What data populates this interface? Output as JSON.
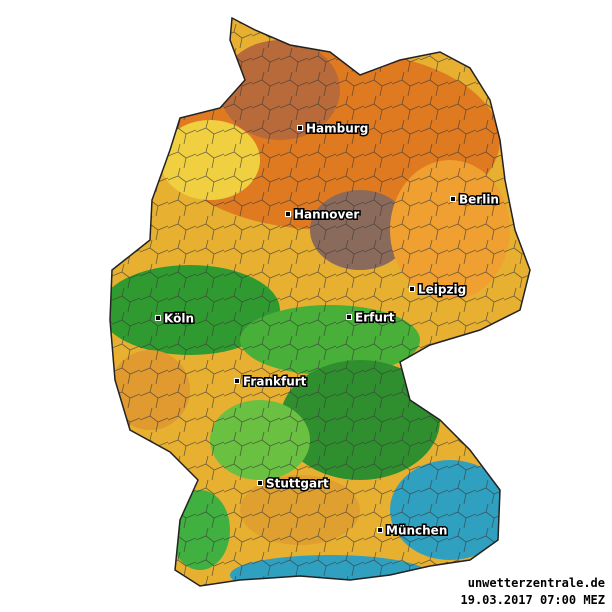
{
  "cities": [
    {
      "name": "Hamburg"
    },
    {
      "name": "Berlin"
    },
    {
      "name": "Hannover"
    },
    {
      "name": "Leipzig"
    },
    {
      "name": "Köln"
    },
    {
      "name": "Erfurt"
    },
    {
      "name": "Frankfurt"
    },
    {
      "name": "Stuttgart"
    },
    {
      "name": "München"
    }
  ],
  "footer": {
    "source": "unwetterzentrale.de",
    "timestamp": "19.03.2017 07:00 MEZ"
  }
}
